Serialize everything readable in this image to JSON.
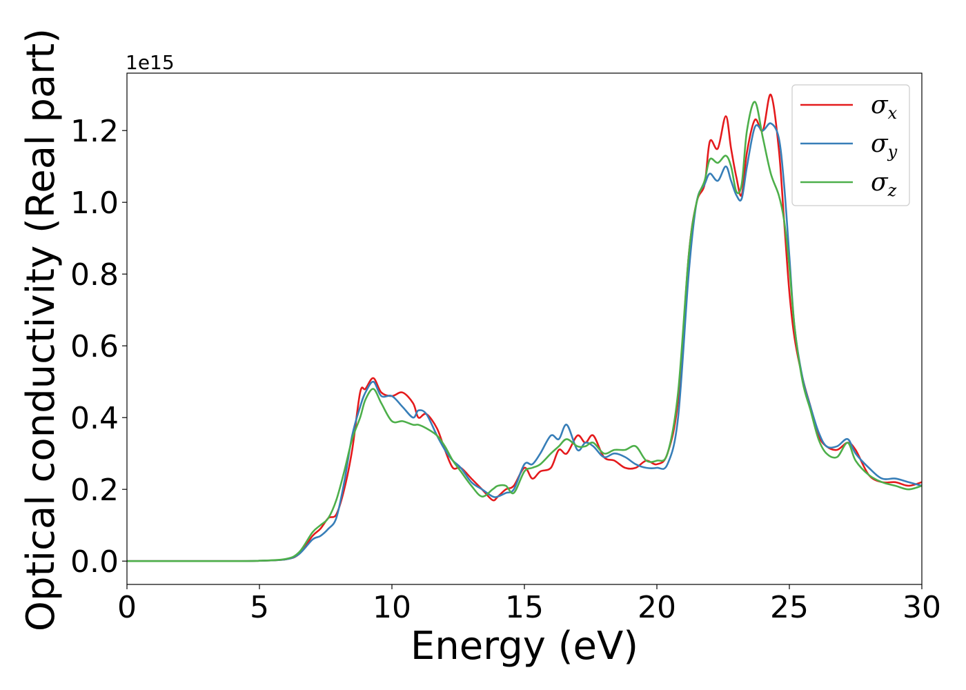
{
  "chart_data": {
    "type": "line",
    "xlabel": "Energy (eV)",
    "ylabel": "Optical conductivity (Real part)",
    "y_offset_label": "1e15",
    "y_multiplier": 1000000000000000.0,
    "xlim": [
      0,
      30
    ],
    "ylim": [
      -0.065,
      1.36
    ],
    "x_ticks": [
      0,
      5,
      10,
      15,
      20,
      25,
      30
    ],
    "x_tick_labels": [
      "0",
      "5",
      "10",
      "15",
      "20",
      "25",
      "30"
    ],
    "y_ticks": [
      0.0,
      0.2,
      0.4,
      0.6,
      0.8,
      1.0,
      1.2
    ],
    "y_tick_labels": [
      "0.0",
      "0.2",
      "0.4",
      "0.6",
      "0.8",
      "1.0",
      "1.2"
    ],
    "grid": false,
    "legend_position": "top-right",
    "series": [
      {
        "name": "σx",
        "symbol": "σ",
        "subscript": "x",
        "color": "#e41a1c",
        "x": [
          0,
          4,
          5,
          6,
          6.5,
          7,
          7.3,
          7.6,
          7.9,
          8.2,
          8.5,
          8.8,
          9.0,
          9.3,
          9.6,
          10.0,
          10.4,
          10.8,
          11.0,
          11.3,
          11.7,
          12.0,
          12.3,
          12.6,
          13.0,
          13.4,
          13.8,
          14.0,
          14.3,
          14.6,
          15.0,
          15.3,
          15.6,
          16.0,
          16.3,
          16.6,
          17.0,
          17.3,
          17.6,
          18.0,
          18.4,
          18.8,
          19.2,
          19.6,
          20.0,
          20.4,
          20.8,
          21.2,
          21.5,
          21.8,
          22.0,
          22.3,
          22.6,
          22.8,
          23.0,
          23.2,
          23.4,
          23.7,
          24.0,
          24.3,
          24.6,
          24.8,
          25.0,
          25.2,
          25.5,
          25.8,
          26.1,
          26.4,
          26.8,
          27.2,
          27.5,
          28.0,
          28.5,
          29.0,
          29.5,
          30.0
        ],
        "y": [
          0.0,
          0.0,
          0.001,
          0.005,
          0.02,
          0.07,
          0.09,
          0.12,
          0.13,
          0.2,
          0.31,
          0.47,
          0.48,
          0.51,
          0.47,
          0.46,
          0.47,
          0.44,
          0.4,
          0.41,
          0.37,
          0.31,
          0.26,
          0.26,
          0.23,
          0.2,
          0.17,
          0.18,
          0.2,
          0.21,
          0.26,
          0.23,
          0.25,
          0.26,
          0.31,
          0.3,
          0.35,
          0.33,
          0.35,
          0.29,
          0.28,
          0.26,
          0.26,
          0.28,
          0.27,
          0.3,
          0.45,
          0.85,
          1.0,
          1.05,
          1.17,
          1.15,
          1.24,
          1.15,
          1.07,
          1.02,
          1.14,
          1.23,
          1.2,
          1.3,
          1.15,
          0.95,
          0.75,
          0.62,
          0.51,
          0.43,
          0.35,
          0.32,
          0.31,
          0.33,
          0.31,
          0.24,
          0.22,
          0.22,
          0.21,
          0.22
        ]
      },
      {
        "name": "σy",
        "symbol": "σ",
        "subscript": "y",
        "color": "#377eb8",
        "x": [
          0,
          4,
          5,
          6,
          6.5,
          7,
          7.3,
          7.6,
          7.9,
          8.2,
          8.5,
          8.8,
          9.0,
          9.3,
          9.6,
          10.0,
          10.4,
          10.8,
          11.0,
          11.3,
          11.7,
          12.0,
          12.3,
          12.6,
          13.0,
          13.4,
          13.8,
          14.0,
          14.3,
          14.6,
          15.0,
          15.3,
          15.6,
          16.0,
          16.3,
          16.6,
          17.0,
          17.3,
          17.6,
          18.0,
          18.4,
          18.8,
          19.2,
          19.6,
          20.0,
          20.4,
          20.8,
          21.2,
          21.5,
          21.8,
          22.0,
          22.3,
          22.6,
          22.8,
          23.0,
          23.2,
          23.4,
          23.7,
          24.0,
          24.3,
          24.6,
          24.8,
          25.0,
          25.2,
          25.5,
          25.8,
          26.1,
          26.4,
          26.8,
          27.2,
          27.5,
          28.0,
          28.5,
          29.0,
          29.5,
          30.0
        ],
        "y": [
          0.0,
          0.0,
          0.001,
          0.005,
          0.02,
          0.06,
          0.07,
          0.09,
          0.12,
          0.22,
          0.35,
          0.43,
          0.47,
          0.5,
          0.46,
          0.46,
          0.43,
          0.4,
          0.42,
          0.41,
          0.35,
          0.31,
          0.28,
          0.26,
          0.22,
          0.2,
          0.18,
          0.18,
          0.19,
          0.2,
          0.27,
          0.27,
          0.3,
          0.35,
          0.34,
          0.38,
          0.31,
          0.33,
          0.32,
          0.29,
          0.3,
          0.29,
          0.27,
          0.26,
          0.26,
          0.27,
          0.4,
          0.8,
          1.0,
          1.05,
          1.08,
          1.06,
          1.1,
          1.06,
          1.02,
          1.01,
          1.1,
          1.21,
          1.2,
          1.22,
          1.18,
          1.05,
          0.85,
          0.65,
          0.51,
          0.43,
          0.36,
          0.32,
          0.32,
          0.34,
          0.3,
          0.26,
          0.23,
          0.23,
          0.22,
          0.21
        ]
      },
      {
        "name": "σz",
        "symbol": "σ",
        "subscript": "z",
        "color": "#4daf4a",
        "x": [
          0,
          4,
          5,
          6,
          6.5,
          7,
          7.3,
          7.6,
          7.9,
          8.2,
          8.5,
          8.8,
          9.0,
          9.3,
          9.6,
          10.0,
          10.4,
          10.8,
          11.0,
          11.3,
          11.7,
          12.0,
          12.3,
          12.6,
          13.0,
          13.4,
          13.8,
          14.0,
          14.3,
          14.6,
          15.0,
          15.3,
          15.6,
          16.0,
          16.3,
          16.6,
          17.0,
          17.3,
          17.6,
          18.0,
          18.4,
          18.8,
          19.2,
          19.6,
          20.0,
          20.4,
          20.8,
          21.2,
          21.5,
          21.8,
          22.0,
          22.3,
          22.6,
          22.8,
          23.0,
          23.2,
          23.4,
          23.7,
          24.0,
          24.3,
          24.6,
          24.8,
          25.0,
          25.2,
          25.5,
          25.8,
          26.1,
          26.4,
          26.8,
          27.2,
          27.5,
          28.0,
          28.5,
          29.0,
          29.5,
          30.0
        ],
        "y": [
          0.0,
          0.0,
          0.001,
          0.006,
          0.025,
          0.08,
          0.1,
          0.12,
          0.17,
          0.25,
          0.34,
          0.4,
          0.45,
          0.48,
          0.44,
          0.39,
          0.39,
          0.38,
          0.38,
          0.37,
          0.35,
          0.32,
          0.28,
          0.25,
          0.21,
          0.18,
          0.2,
          0.21,
          0.21,
          0.19,
          0.25,
          0.26,
          0.27,
          0.3,
          0.32,
          0.34,
          0.32,
          0.32,
          0.33,
          0.3,
          0.31,
          0.31,
          0.32,
          0.28,
          0.28,
          0.3,
          0.47,
          0.85,
          1.0,
          1.06,
          1.12,
          1.11,
          1.13,
          1.1,
          1.03,
          1.05,
          1.2,
          1.28,
          1.18,
          1.08,
          1.02,
          0.95,
          0.82,
          0.65,
          0.5,
          0.42,
          0.34,
          0.3,
          0.29,
          0.33,
          0.28,
          0.24,
          0.22,
          0.21,
          0.2,
          0.21
        ]
      }
    ]
  }
}
